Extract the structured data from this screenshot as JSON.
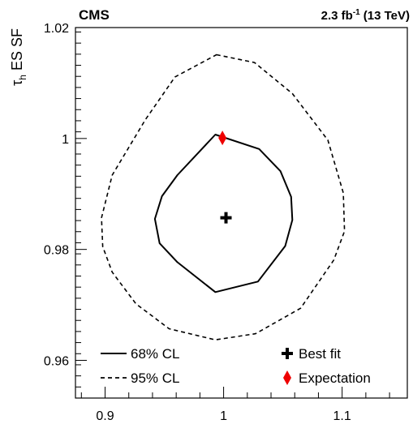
{
  "chart_data": {
    "type": "scatter",
    "experiment_label": "CMS",
    "lumi_label": {
      "value": "2.3 fb",
      "superscript": "-1",
      "energy": "(13 TeV)"
    },
    "ylabel": {
      "symbol": "τ",
      "subscript": "h",
      "text": "ES SF"
    },
    "xlabel": "",
    "xlim": [
      0.875,
      1.155
    ],
    "ylim": [
      0.9532,
      1.02
    ],
    "x_ticks": [
      0.9,
      1,
      1.1
    ],
    "x_tick_labels": [
      "0.9",
      "1",
      "1.1"
    ],
    "y_ticks": [
      0.96,
      0.98,
      1,
      1.02
    ],
    "y_tick_labels": [
      "0.96",
      "0.98",
      "1",
      "1.02"
    ],
    "grid": false,
    "legend_placement": "bottom",
    "series": [
      {
        "name": "68% CL",
        "style": "solid",
        "x": [
          0.993,
          1.03,
          1.048,
          1.057,
          1.058,
          1.052,
          1.029,
          0.993,
          0.961,
          0.946,
          0.942,
          0.948,
          0.961,
          0.993
        ],
        "y": [
          1.0007,
          0.9981,
          0.9941,
          0.9895,
          0.9853,
          0.9806,
          0.9742,
          0.9723,
          0.9777,
          0.9811,
          0.9855,
          0.9896,
          0.9934,
          1.0007
        ]
      },
      {
        "name": "95% CL",
        "style": "dashed",
        "x": [
          0.994,
          1.026,
          1.058,
          1.088,
          1.101,
          1.102,
          1.093,
          1.065,
          1.027,
          0.993,
          0.954,
          0.926,
          0.906,
          0.898,
          0.897,
          0.906,
          0.934,
          0.959,
          0.994
        ],
        "y": [
          1.0151,
          1.0137,
          1.0081,
          0.9997,
          0.9902,
          0.9833,
          0.9781,
          0.9694,
          0.9648,
          0.9637,
          0.9657,
          0.9702,
          0.9759,
          0.9805,
          0.9857,
          0.9934,
          1.0034,
          1.0111,
          1.0151
        ]
      }
    ],
    "markers": [
      {
        "name": "Best fit",
        "shape": "cross",
        "color": "#000000",
        "x": 1.002,
        "y": 0.9857
      },
      {
        "name": "Expectation",
        "shape": "diamond",
        "color": "#ee0000",
        "x": 0.999,
        "y": 1.0001
      }
    ],
    "legend": [
      {
        "label": "68% CL",
        "kind": "line-solid"
      },
      {
        "label": "95% CL",
        "kind": "line-dashed"
      },
      {
        "label": "Best fit",
        "kind": "cross"
      },
      {
        "label": "Expectation",
        "kind": "diamond"
      }
    ]
  }
}
